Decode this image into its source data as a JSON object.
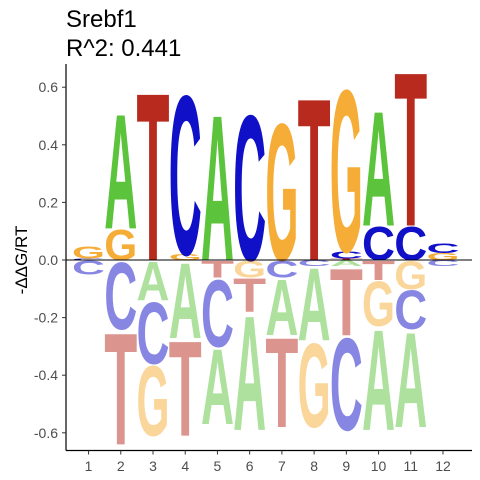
{
  "chart_data": {
    "type": "sequence-logo",
    "title": "Srebf1",
    "subtitle": "R^2: 0.441",
    "xlabel": "",
    "ylabel": "-ΔΔG/RT",
    "ylim": [
      -0.65,
      0.65
    ],
    "yticks": [
      "-0.6",
      "-0.4",
      "-0.2",
      "0.0",
      "0.2",
      "0.4",
      "0.6"
    ],
    "ytick_values": [
      -0.6,
      -0.4,
      -0.2,
      0.0,
      0.2,
      0.4,
      0.6
    ],
    "positions": [
      "1",
      "2",
      "3",
      "4",
      "5",
      "6",
      "7",
      "8",
      "9",
      "10",
      "11",
      "12"
    ],
    "colors": {
      "A": "#5cc43c",
      "C": "#1010c8",
      "G": "#f5ad38",
      "T": "#b8291e"
    },
    "positive_letters": [
      [
        [
          "A",
          0.0
        ],
        [
          "T",
          0.0
        ],
        [
          "C",
          0.005
        ],
        [
          "G",
          0.045
        ]
      ],
      [
        [
          "C",
          0.0
        ],
        [
          "T",
          0.0
        ],
        [
          "G",
          0.11
        ],
        [
          "A",
          0.41
        ]
      ],
      [
        [
          "A",
          0.0
        ],
        [
          "C",
          0.0
        ],
        [
          "G",
          0.0
        ],
        [
          "T",
          0.6
        ]
      ],
      [
        [
          "A",
          0.0
        ],
        [
          "T",
          0.0
        ],
        [
          "G",
          0.02
        ],
        [
          "C",
          0.57
        ]
      ],
      [
        [
          "C",
          0.0
        ],
        [
          "T",
          0.0
        ],
        [
          "G",
          0.0
        ],
        [
          "A",
          0.52
        ]
      ],
      [
        [
          "A",
          0.0
        ],
        [
          "G",
          0.0
        ],
        [
          "T",
          0.0
        ],
        [
          "C",
          0.52
        ]
      ],
      [
        [
          "A",
          0.0
        ],
        [
          "C",
          0.0
        ],
        [
          "T",
          0.0
        ],
        [
          "G",
          0.49
        ]
      ],
      [
        [
          "A",
          0.0
        ],
        [
          "C",
          0.0
        ],
        [
          "G",
          0.0
        ],
        [
          "T",
          0.58
        ]
      ],
      [
        [
          "A",
          0.0
        ],
        [
          "T",
          0.005
        ],
        [
          "C",
          0.025
        ],
        [
          "G",
          0.58
        ]
      ],
      [
        [
          "G",
          0.0
        ],
        [
          "T",
          0.0
        ],
        [
          "C",
          0.12
        ],
        [
          "A",
          0.41
        ]
      ],
      [
        [
          "A",
          0.0
        ],
        [
          "G",
          0.0
        ],
        [
          "C",
          0.12
        ],
        [
          "T",
          0.55
        ]
      ],
      [
        [
          "A",
          0.0
        ],
        [
          "T",
          0.0
        ],
        [
          "G",
          0.025
        ],
        [
          "C",
          0.035
        ]
      ]
    ],
    "negative_letters": [
      [
        [
          "C",
          -0.05
        ],
        [
          "A",
          0.0
        ],
        [
          "G",
          0.0
        ],
        [
          "T",
          0.0
        ]
      ],
      [
        [
          "C",
          -0.24
        ],
        [
          "T",
          -0.64
        ],
        [
          "A",
          0.0
        ],
        [
          "G",
          0.0
        ]
      ],
      [
        [
          "A",
          -0.14
        ],
        [
          "C",
          -0.36
        ],
        [
          "G",
          -0.61
        ],
        [
          "T",
          0.0
        ]
      ],
      [
        [
          "A",
          -0.27
        ],
        [
          "T",
          -0.61
        ],
        [
          "C",
          0.0
        ],
        [
          "G",
          0.0
        ]
      ],
      [
        [
          "T",
          -0.06
        ],
        [
          "C",
          -0.3
        ],
        [
          "A",
          -0.57
        ],
        [
          "G",
          0.0
        ]
      ],
      [
        [
          "G",
          -0.06
        ],
        [
          "T",
          -0.18
        ],
        [
          "A",
          -0.59
        ],
        [
          "C",
          0.0
        ]
      ],
      [
        [
          "C",
          -0.06
        ],
        [
          "A",
          -0.26
        ],
        [
          "T",
          -0.58
        ],
        [
          "G",
          0.0
        ]
      ],
      [
        [
          "C",
          -0.02
        ],
        [
          "A",
          -0.28
        ],
        [
          "G",
          -0.58
        ],
        [
          "T",
          0.0
        ]
      ],
      [
        [
          "A",
          -0.02
        ],
        [
          "T",
          -0.26
        ],
        [
          "C",
          -0.59
        ],
        [
          "G",
          0.0
        ]
      ],
      [
        [
          "T",
          -0.07
        ],
        [
          "G",
          -0.23
        ],
        [
          "A",
          -0.59
        ],
        [
          "C",
          0.0
        ]
      ],
      [
        [
          "G",
          -0.1
        ],
        [
          "C",
          -0.24
        ],
        [
          "A",
          -0.58
        ],
        [
          "T",
          0.0
        ]
      ],
      [
        [
          "C",
          -0.02
        ],
        [
          "T",
          0.0
        ],
        [
          "A",
          0.0
        ],
        [
          "G",
          0.0
        ]
      ]
    ]
  }
}
